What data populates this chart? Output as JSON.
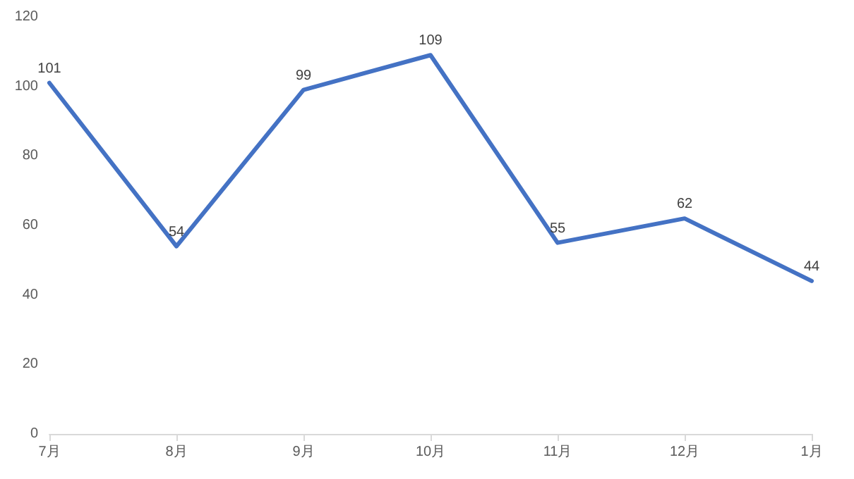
{
  "chart_data": {
    "type": "line",
    "categories": [
      "7月",
      "8月",
      "9月",
      "10月",
      "11月",
      "12月",
      "1月"
    ],
    "series": [
      {
        "color": "#4472c4",
        "values": [
          101,
          54,
          99,
          109,
          55,
          62,
          44
        ]
      }
    ],
    "ylim": [
      0,
      120
    ],
    "yticks": [
      0,
      20,
      40,
      60,
      80,
      100,
      120
    ],
    "data_labels": true,
    "grid": false,
    "marker": "none",
    "line_style": "solid"
  }
}
